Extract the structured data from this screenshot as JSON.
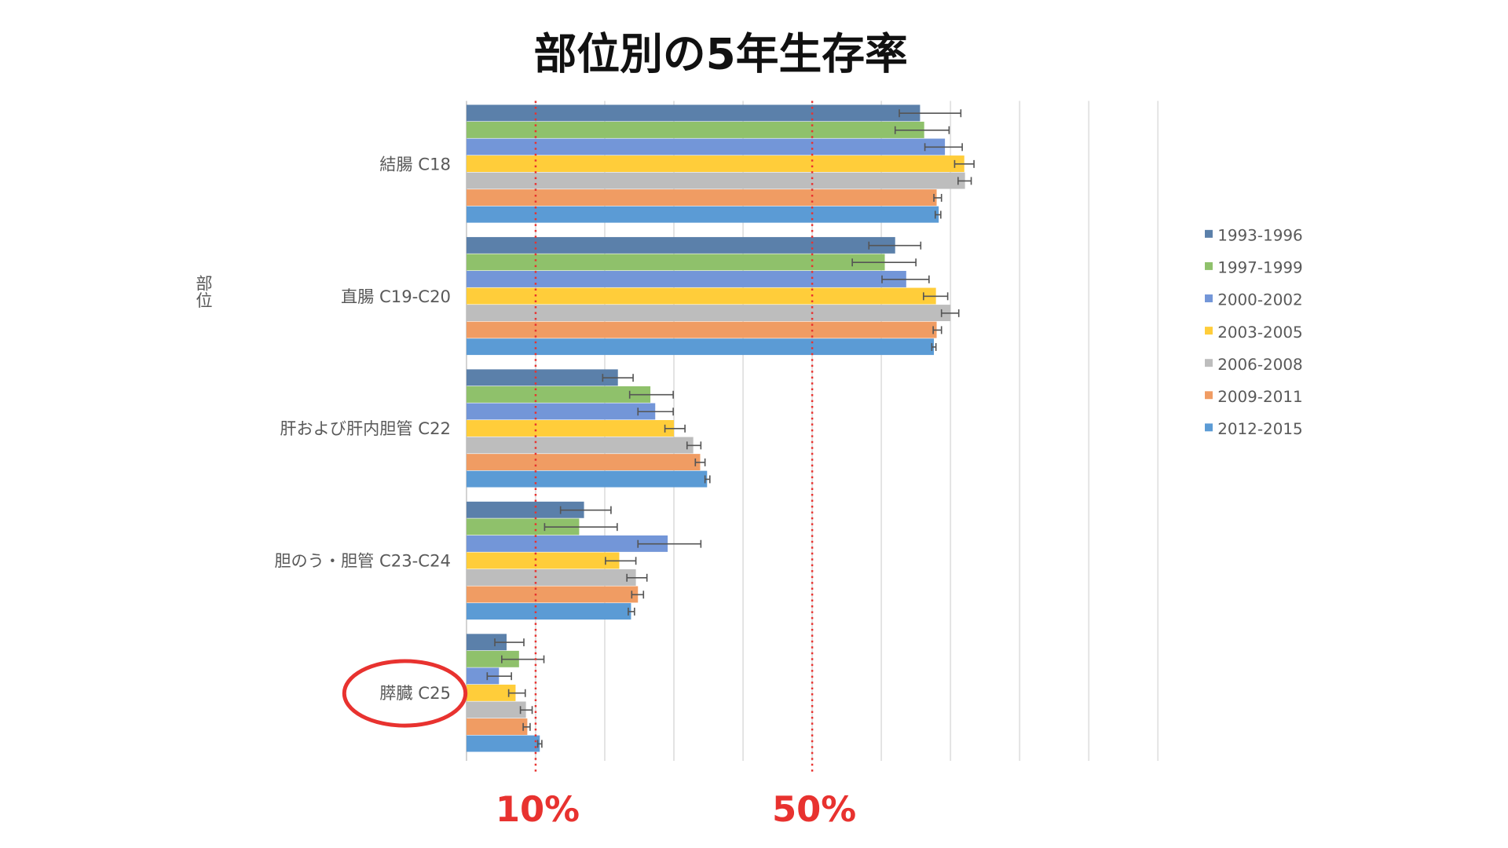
{
  "chart_data": {
    "type": "bar",
    "orientation": "horizontal",
    "title": "部位別の5年生存率",
    "ylabel": "部位",
    "xlabel": "",
    "xlim": [
      0,
      100
    ],
    "grid": true,
    "legend_position": "right",
    "categories": [
      "結腸 C18",
      "直腸 C19-C20",
      "肝および肝内胆管 C22",
      "胆のう・胆管 C23-C24",
      "膵臓 C25"
    ],
    "series": [
      {
        "name": "1993-1996",
        "color": "#5b80aa",
        "values": [
          65.6,
          62.0,
          21.9,
          17.0,
          5.8
        ],
        "err_low": [
          62.6,
          58.2,
          19.7,
          13.6,
          4.1
        ],
        "err_high": [
          71.5,
          65.7,
          24.1,
          20.9,
          8.3
        ]
      },
      {
        "name": "1997-1999",
        "color": "#8fc16b",
        "values": [
          66.2,
          60.5,
          26.6,
          16.3,
          7.6
        ],
        "err_low": [
          62.0,
          55.8,
          23.6,
          11.3,
          5.1
        ],
        "err_high": [
          69.8,
          65.0,
          29.9,
          21.8,
          11.2
        ]
      },
      {
        "name": "2000-2002",
        "color": "#7396d8",
        "values": [
          69.2,
          63.6,
          27.3,
          29.1,
          4.7
        ],
        "err_low": [
          66.3,
          60.1,
          24.8,
          24.8,
          3.0
        ],
        "err_high": [
          71.7,
          66.9,
          29.9,
          33.9,
          6.5
        ]
      },
      {
        "name": "2003-2005",
        "color": "#ffcd3a",
        "values": [
          72.0,
          67.9,
          30.0,
          22.1,
          7.1
        ],
        "err_low": [
          70.6,
          66.1,
          28.7,
          20.1,
          6.1
        ],
        "err_high": [
          73.4,
          69.6,
          31.6,
          24.5,
          8.5
        ]
      },
      {
        "name": "2006-2008",
        "color": "#bdbdbd",
        "values": [
          72.1,
          70.0,
          32.8,
          24.5,
          8.6
        ],
        "err_low": [
          71.1,
          68.7,
          31.9,
          23.2,
          7.8
        ],
        "err_high": [
          73.0,
          71.2,
          33.9,
          26.1,
          9.5
        ]
      },
      {
        "name": "2009-2011",
        "color": "#f09c63",
        "values": [
          68.0,
          68.0,
          33.8,
          24.8,
          8.8
        ],
        "err_low": [
          67.6,
          67.5,
          33.1,
          23.9,
          8.2
        ],
        "err_high": [
          68.7,
          68.7,
          34.5,
          25.6,
          9.2
        ]
      },
      {
        "name": "2012-2015",
        "color": "#5b9bd5",
        "values": [
          68.3,
          67.6,
          34.8,
          23.8,
          10.6
        ],
        "err_low": [
          67.8,
          67.3,
          34.5,
          23.4,
          10.3
        ],
        "err_high": [
          68.6,
          67.9,
          35.2,
          24.3,
          10.9
        ]
      }
    ],
    "annotations": [
      {
        "text": "10%",
        "x": 10,
        "color": "#e8322f",
        "style": "dotted-vertical-line"
      },
      {
        "text": "50%",
        "x": 50,
        "color": "#e8322f",
        "style": "dotted-vertical-line"
      }
    ],
    "highlight": {
      "category": "膵臓 C25",
      "color": "#e8322f",
      "style": "circle"
    }
  }
}
